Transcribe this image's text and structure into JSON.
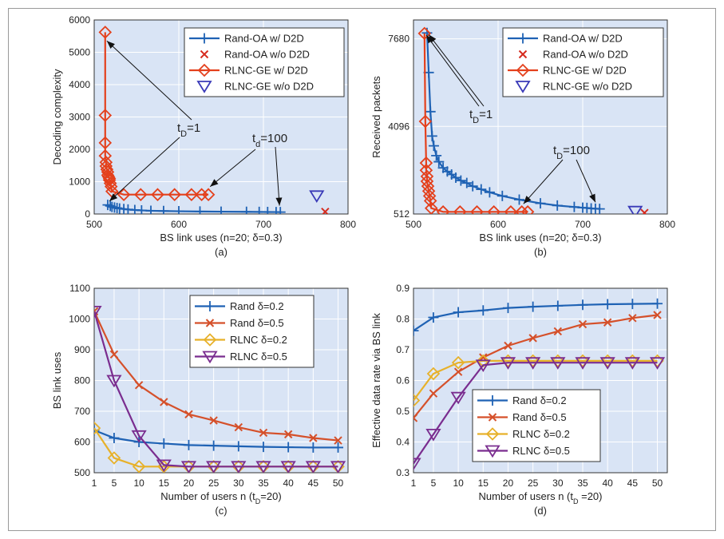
{
  "chart_data": [
    {
      "type": "line",
      "panel_label": "(a)",
      "xlabel": "BS link uses (n=20; δ=0.3)",
      "ylabel": "Decoding complexity",
      "xlim": [
        500,
        800
      ],
      "ylim": [
        0,
        6000
      ],
      "xticks": [
        500,
        600,
        700,
        800
      ],
      "yticks": [
        0,
        1000,
        2000,
        3000,
        4000,
        5000,
        6000
      ],
      "grid": true,
      "legend_position": "top-right",
      "series": [
        {
          "name": "Rand-OA w/ D2D",
          "color": "#1f62b4",
          "marker": "plus",
          "line": true,
          "x": [
            516,
            519,
            521,
            524,
            527,
            530,
            535,
            540,
            548,
            556,
            567,
            582,
            600,
            625,
            650,
            680,
            695,
            705,
            715,
            720
          ],
          "y": [
            280,
            250,
            220,
            200,
            185,
            170,
            155,
            140,
            125,
            112,
            100,
            92,
            85,
            78,
            72,
            68,
            65,
            62,
            60,
            58
          ]
        },
        {
          "name": "Rand-OA w/o D2D",
          "color": "#d62b1e",
          "marker": "x",
          "line": false,
          "x": [
            773
          ],
          "y": [
            70
          ]
        },
        {
          "name": "RLNC-GE w/ D2D",
          "color": "#e4401c",
          "marker": "diamond",
          "line": true,
          "x": [
            513,
            513,
            513,
            513,
            514,
            514,
            515,
            516,
            516,
            517,
            518,
            518,
            519,
            520,
            521,
            535,
            555,
            575,
            595,
            615,
            627,
            635
          ],
          "y": [
            5620,
            3050,
            2200,
            1800,
            1600,
            1480,
            1380,
            1300,
            1200,
            1150,
            1100,
            1050,
            950,
            850,
            700,
            600,
            600,
            600,
            600,
            600,
            600,
            600
          ]
        },
        {
          "name": "RLNC-GE w/o D2D",
          "color": "#3a3ab8",
          "marker": "triangle-down",
          "line": false,
          "x": [
            763
          ],
          "y": [
            560
          ]
        }
      ],
      "annotations": [
        {
          "text_main": "t",
          "text_sub": "D",
          "text_rest": "=1"
        },
        {
          "text_main": "t",
          "text_sub": "d",
          "text_rest": "=100"
        }
      ]
    },
    {
      "type": "line",
      "panel_label": "(b)",
      "xlabel": "BS link uses (n=20; δ=0.3)",
      "ylabel": "Received packets",
      "xlim": [
        500,
        800
      ],
      "ylim": [
        512,
        8450
      ],
      "xticks": [
        500,
        600,
        700,
        800
      ],
      "yticks": [
        512,
        4096,
        7680
      ],
      "grid": true,
      "legend_position": "top-right",
      "series": [
        {
          "name": "Rand-OA w/ D2D",
          "color": "#1f62b4",
          "marker": "plus",
          "line": true,
          "x": [
            516,
            518,
            520,
            522,
            524,
            527,
            530,
            535,
            540,
            545,
            550,
            556,
            563,
            570,
            580,
            590,
            605,
            625,
            650,
            670,
            690,
            700,
            705,
            710,
            715,
            720
          ],
          "y": [
            7920,
            6300,
            4700,
            3700,
            3300,
            2900,
            2650,
            2400,
            2250,
            2130,
            2000,
            1880,
            1780,
            1650,
            1520,
            1400,
            1250,
            1100,
            950,
            860,
            800,
            770,
            760,
            740,
            730,
            720
          ]
        },
        {
          "name": "Rand-OA w/o D2D",
          "color": "#d62b1e",
          "marker": "x",
          "line": false,
          "x": [
            773
          ],
          "y": [
            560
          ]
        },
        {
          "name": "RLNC-GE w/ D2D",
          "color": "#e4401c",
          "marker": "diamond",
          "line": true,
          "x": [
            513,
            514,
            515,
            515,
            516,
            516,
            517,
            518,
            519,
            520,
            521,
            535,
            555,
            575,
            595,
            615,
            628,
            635
          ],
          "y": [
            7900,
            4300,
            2600,
            2300,
            2050,
            1850,
            1650,
            1450,
            1250,
            1050,
            750,
            600,
            600,
            600,
            600,
            600,
            600,
            600
          ]
        },
        {
          "name": "RLNC-GE w/o D2D",
          "color": "#3a3ab8",
          "marker": "triangle-down",
          "line": false,
          "x": [
            762
          ],
          "y": [
            620
          ]
        }
      ],
      "annotations": [
        {
          "text_main": "t",
          "text_sub": "D",
          "text_rest": "=1"
        },
        {
          "text_main": "t",
          "text_sub": "D",
          "text_rest": "=100"
        }
      ]
    },
    {
      "type": "line",
      "panel_label": "(c)",
      "xlabel": "Number of users n (t_D=20)",
      "ylabel": "BS link uses",
      "xlim": [
        1,
        52
      ],
      "ylim": [
        500,
        1100
      ],
      "xticks": [
        1,
        5,
        10,
        15,
        20,
        25,
        30,
        35,
        40,
        45,
        50
      ],
      "yticks": [
        500,
        600,
        700,
        800,
        900,
        1000,
        1100
      ],
      "grid": true,
      "legend_position": "top-right",
      "x": [
        1,
        5,
        10,
        15,
        20,
        25,
        30,
        35,
        40,
        45,
        50
      ],
      "series": [
        {
          "name": "Rand δ=0.2",
          "color": "#1f62b4",
          "marker": "plus",
          "values": [
            638,
            613,
            600,
            595,
            590,
            588,
            586,
            584,
            583,
            582,
            582
          ]
        },
        {
          "name": "Rand δ=0.5",
          "color": "#d5502a",
          "marker": "x",
          "values": [
            1025,
            885,
            785,
            730,
            690,
            670,
            648,
            630,
            625,
            613,
            605
          ]
        },
        {
          "name": "RLNC δ=0.2",
          "color": "#e7b12a",
          "marker": "diamond",
          "values": [
            645,
            548,
            520,
            520,
            520,
            520,
            520,
            520,
            520,
            520,
            520
          ]
        },
        {
          "name": "RLNC δ=0.5",
          "color": "#7a2d8f",
          "marker": "triangle-down",
          "values": [
            1025,
            800,
            620,
            525,
            520,
            520,
            520,
            520,
            520,
            520,
            520
          ]
        }
      ]
    },
    {
      "type": "line",
      "panel_label": "(d)",
      "xlabel": "Number of users n (t_D =20)",
      "ylabel": "Effective data rate via BS link",
      "xlim": [
        1,
        52
      ],
      "ylim": [
        0.3,
        0.9
      ],
      "xticks": [
        1,
        5,
        10,
        15,
        20,
        25,
        30,
        35,
        40,
        45,
        50
      ],
      "yticks": [
        0.3,
        0.4,
        0.5,
        0.6,
        0.7,
        0.8,
        0.9
      ],
      "grid": true,
      "legend_position": "bottom-center",
      "x": [
        1,
        5,
        10,
        15,
        20,
        25,
        30,
        35,
        40,
        45,
        50
      ],
      "series": [
        {
          "name": "Rand δ=0.2",
          "color": "#1f62b4",
          "marker": "plus",
          "values": [
            0.762,
            0.805,
            0.822,
            0.828,
            0.836,
            0.84,
            0.843,
            0.846,
            0.848,
            0.849,
            0.85
          ]
        },
        {
          "name": "Rand δ=0.5",
          "color": "#d5502a",
          "marker": "x",
          "values": [
            0.478,
            0.558,
            0.628,
            0.675,
            0.713,
            0.738,
            0.76,
            0.783,
            0.789,
            0.803,
            0.813
          ]
        },
        {
          "name": "RLNC δ=0.2",
          "color": "#e7b12a",
          "marker": "diamond",
          "values": [
            0.535,
            0.622,
            0.658,
            0.664,
            0.664,
            0.664,
            0.664,
            0.664,
            0.664,
            0.664,
            0.664
          ]
        },
        {
          "name": "RLNC δ=0.5",
          "color": "#7a2d8f",
          "marker": "triangle-down",
          "values": [
            0.33,
            0.425,
            0.545,
            0.65,
            0.658,
            0.658,
            0.658,
            0.658,
            0.658,
            0.658,
            0.658
          ]
        }
      ]
    }
  ]
}
